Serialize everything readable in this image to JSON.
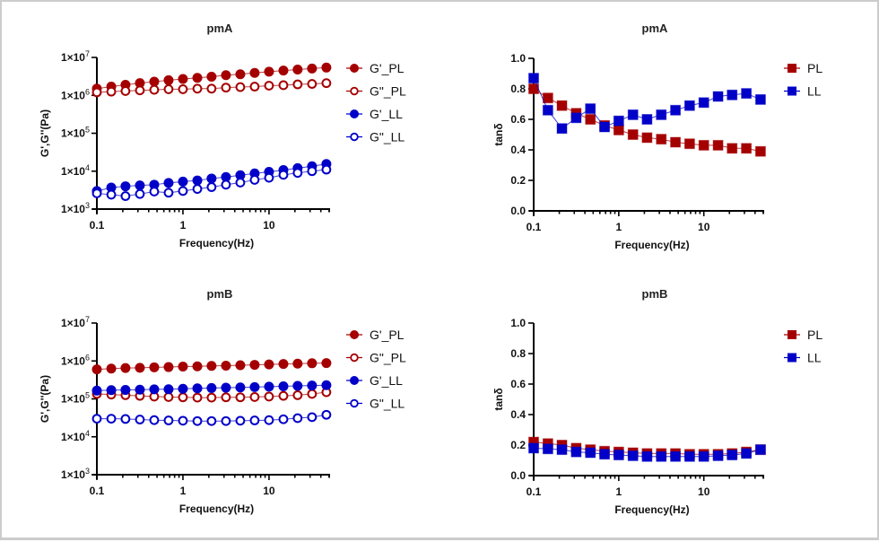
{
  "frequencies": [
    0.1,
    0.147,
    0.215,
    0.316,
    0.464,
    0.681,
    1,
    1.47,
    2.15,
    3.16,
    4.64,
    6.81,
    10,
    14.7,
    21.5,
    31.6,
    46.4
  ],
  "colors": {
    "PL": "#a50000",
    "LL": "#0000c8"
  },
  "chart_data": [
    {
      "id": "modulus-pmA",
      "type": "scatter",
      "title": "pmA",
      "xlabel": "Frequency(Hz)",
      "ylabel": "G',G''(Pa)",
      "xscale": "log",
      "yscale": "log",
      "xlim": [
        0.1,
        50
      ],
      "ylim": [
        1000,
        10000000
      ],
      "xticks": [
        "0.1",
        "1",
        "10"
      ],
      "yticks": [
        {
          "value": 10000000,
          "base": "1×10",
          "exp": "7"
        },
        {
          "value": 1000000,
          "base": "1×10",
          "exp": "6"
        },
        {
          "value": 100000,
          "base": "1×10",
          "exp": "5"
        },
        {
          "value": 10000,
          "base": "1×10",
          "exp": "4"
        },
        {
          "value": 1000,
          "base": "1×10",
          "exp": "3"
        }
      ],
      "legend_position": "right",
      "series": [
        {
          "name": "G'_PL",
          "group": "PL",
          "marker": "circle",
          "filled": true,
          "values": [
            1500000,
            1700000,
            1900000,
            2100000,
            2300000,
            2500000,
            2700000,
            2900000,
            3100000,
            3400000,
            3600000,
            3900000,
            4200000,
            4500000,
            4800000,
            5100000,
            5400000
          ]
        },
        {
          "name": "G\"_PL",
          "group": "PL",
          "marker": "circle",
          "filled": false,
          "values": [
            1200000,
            1250000,
            1300000,
            1350000,
            1400000,
            1450000,
            1450000,
            1500000,
            1500000,
            1600000,
            1650000,
            1700000,
            1800000,
            1850000,
            1950000,
            2000000,
            2100000
          ]
        },
        {
          "name": "G'_LL",
          "group": "LL",
          "marker": "circle",
          "filled": true,
          "values": [
            3000,
            3700,
            4000,
            4200,
            4400,
            4900,
            5300,
            5700,
            6400,
            7000,
            7800,
            8700,
            9600,
            10700,
            12000,
            13500,
            15500
          ]
        },
        {
          "name": "G\"_LL",
          "group": "LL",
          "marker": "circle",
          "filled": false,
          "values": [
            2600,
            2400,
            2200,
            2500,
            2900,
            2700,
            3000,
            3400,
            3800,
            4400,
            5000,
            5900,
            6700,
            8000,
            9000,
            10000,
            11000
          ]
        }
      ]
    },
    {
      "id": "tandelta-pmA",
      "type": "scatter",
      "title": "pmA",
      "xlabel": "Frequency(Hz)",
      "ylabel": "tanδ",
      "xscale": "log",
      "yscale": "linear",
      "xlim": [
        0.1,
        50
      ],
      "ylim": [
        0,
        1.0
      ],
      "xticks": [
        "0.1",
        "1",
        "10"
      ],
      "yticks": [
        "0.0",
        "0.2",
        "0.4",
        "0.6",
        "0.8",
        "1.0"
      ],
      "legend_position": "right",
      "series": [
        {
          "name": "PL",
          "group": "PL",
          "marker": "square",
          "filled": true,
          "values": [
            0.8,
            0.74,
            0.69,
            0.64,
            0.6,
            0.56,
            0.53,
            0.5,
            0.48,
            0.47,
            0.45,
            0.44,
            0.43,
            0.43,
            0.41,
            0.41,
            0.39
          ]
        },
        {
          "name": "LL",
          "group": "LL",
          "marker": "square",
          "filled": true,
          "values": [
            0.87,
            0.66,
            0.54,
            0.61,
            0.67,
            0.55,
            0.59,
            0.63,
            0.6,
            0.63,
            0.66,
            0.69,
            0.71,
            0.75,
            0.76,
            0.77,
            0.73
          ]
        }
      ]
    },
    {
      "id": "modulus-pmB",
      "type": "scatter",
      "title": "pmB",
      "xlabel": "Frequency(Hz)",
      "ylabel": "G',G''(Pa)",
      "xscale": "log",
      "yscale": "log",
      "xlim": [
        0.1,
        50
      ],
      "ylim": [
        1000,
        10000000
      ],
      "xticks": [
        "0.1",
        "1",
        "10"
      ],
      "yticks": [
        {
          "value": 10000000,
          "base": "1×10",
          "exp": "7"
        },
        {
          "value": 1000000,
          "base": "1×10",
          "exp": "6"
        },
        {
          "value": 100000,
          "base": "1×10",
          "exp": "5"
        },
        {
          "value": 10000,
          "base": "1×10",
          "exp": "4"
        },
        {
          "value": 1000,
          "base": "1×10",
          "exp": "3"
        }
      ],
      "legend_position": "right",
      "series": [
        {
          "name": "G'_PL",
          "group": "PL",
          "marker": "circle",
          "filled": true,
          "values": [
            600000,
            630000,
            650000,
            660000,
            680000,
            690000,
            710000,
            720000,
            740000,
            750000,
            770000,
            790000,
            810000,
            830000,
            850000,
            870000,
            880000
          ]
        },
        {
          "name": "G\"_PL",
          "group": "PL",
          "marker": "circle",
          "filled": false,
          "values": [
            135000,
            130000,
            125000,
            120000,
            115000,
            112000,
            110000,
            108000,
            108000,
            110000,
            110000,
            112000,
            115000,
            120000,
            125000,
            135000,
            150000
          ]
        },
        {
          "name": "G'_LL",
          "group": "LL",
          "marker": "circle",
          "filled": true,
          "values": [
            165000,
            170000,
            172000,
            175000,
            178000,
            180000,
            185000,
            190000,
            193000,
            197000,
            200000,
            205000,
            210000,
            215000,
            220000,
            225000,
            230000
          ]
        },
        {
          "name": "G\"_LL",
          "group": "LL",
          "marker": "circle",
          "filled": false,
          "values": [
            30000,
            30000,
            29500,
            28500,
            27500,
            27000,
            26500,
            26000,
            26000,
            26000,
            26500,
            27000,
            27500,
            29000,
            31000,
            33000,
            38000
          ]
        }
      ]
    },
    {
      "id": "tandelta-pmB",
      "type": "scatter",
      "title": "pmB",
      "xlabel": "Frequency(Hz)",
      "ylabel": "tanδ",
      "xscale": "log",
      "yscale": "linear",
      "xlim": [
        0.1,
        50
      ],
      "ylim": [
        0,
        1.0
      ],
      "xticks": [
        "0.1",
        "1",
        "10"
      ],
      "yticks": [
        "0.0",
        "0.2",
        "0.4",
        "0.6",
        "0.8",
        "1.0"
      ],
      "legend_position": "right",
      "series": [
        {
          "name": "PL",
          "group": "PL",
          "marker": "square",
          "filled": true,
          "values": [
            0.22,
            0.21,
            0.2,
            0.18,
            0.17,
            0.16,
            0.155,
            0.15,
            0.145,
            0.145,
            0.145,
            0.14,
            0.14,
            0.14,
            0.145,
            0.155,
            0.17
          ]
        },
        {
          "name": "LL",
          "group": "LL",
          "marker": "square",
          "filled": true,
          "values": [
            0.18,
            0.175,
            0.17,
            0.155,
            0.15,
            0.14,
            0.135,
            0.13,
            0.125,
            0.125,
            0.125,
            0.125,
            0.125,
            0.13,
            0.135,
            0.145,
            0.17
          ]
        }
      ]
    }
  ]
}
